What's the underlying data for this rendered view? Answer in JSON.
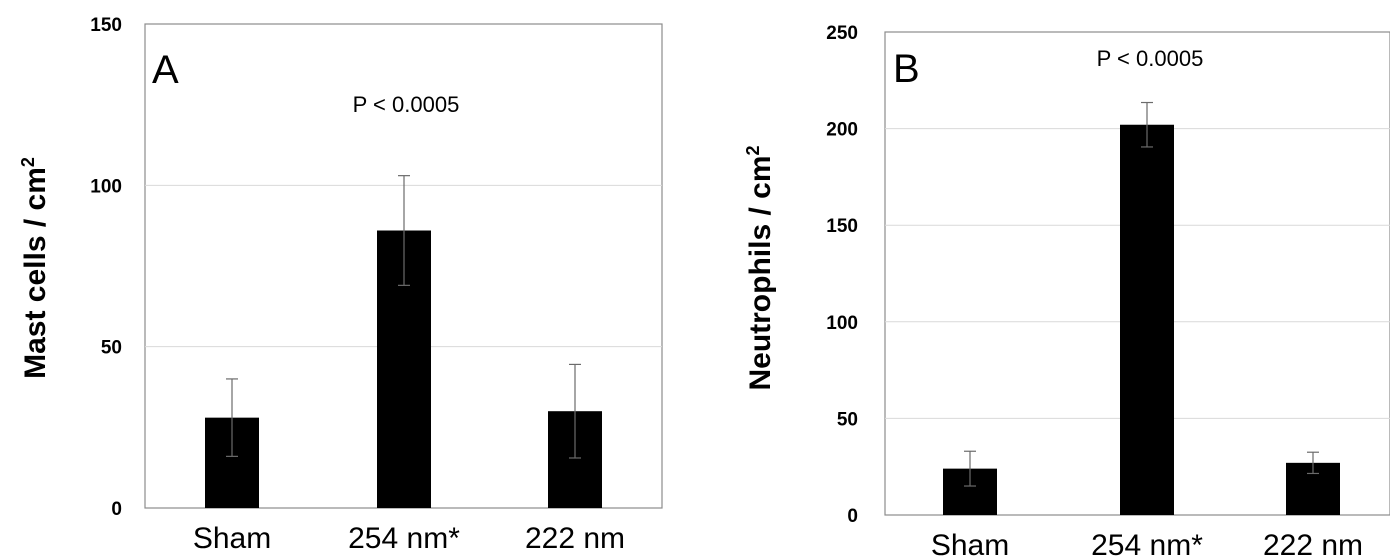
{
  "chart_data": [
    {
      "type": "bar",
      "panel_label": "A",
      "annotation": "P < 0.0005",
      "ylabel": "Mast cells / cm",
      "ylabel_sup": "2",
      "categories": [
        "Sham",
        "254 nm*",
        "222 nm"
      ],
      "values": [
        28,
        86,
        30
      ],
      "errors": [
        12,
        17,
        14.5
      ],
      "ylim": [
        0,
        150
      ],
      "yticks": [
        0,
        50,
        100,
        150
      ],
      "grid": true,
      "bar_color": "#000000",
      "grid_color": "#d9d9d9"
    },
    {
      "type": "bar",
      "panel_label": "B",
      "annotation": "P < 0.0005",
      "ylabel": "Neutrophils / cm",
      "ylabel_sup": "2",
      "categories": [
        "Sham",
        "254 nm*",
        "222 nm"
      ],
      "values": [
        24,
        202,
        27
      ],
      "errors": [
        9,
        11.5,
        5.5
      ],
      "ylim": [
        0,
        250
      ],
      "yticks": [
        0,
        50,
        100,
        150,
        200,
        250
      ],
      "grid": true,
      "bar_color": "#000000",
      "grid_color": "#d9d9d9"
    }
  ]
}
